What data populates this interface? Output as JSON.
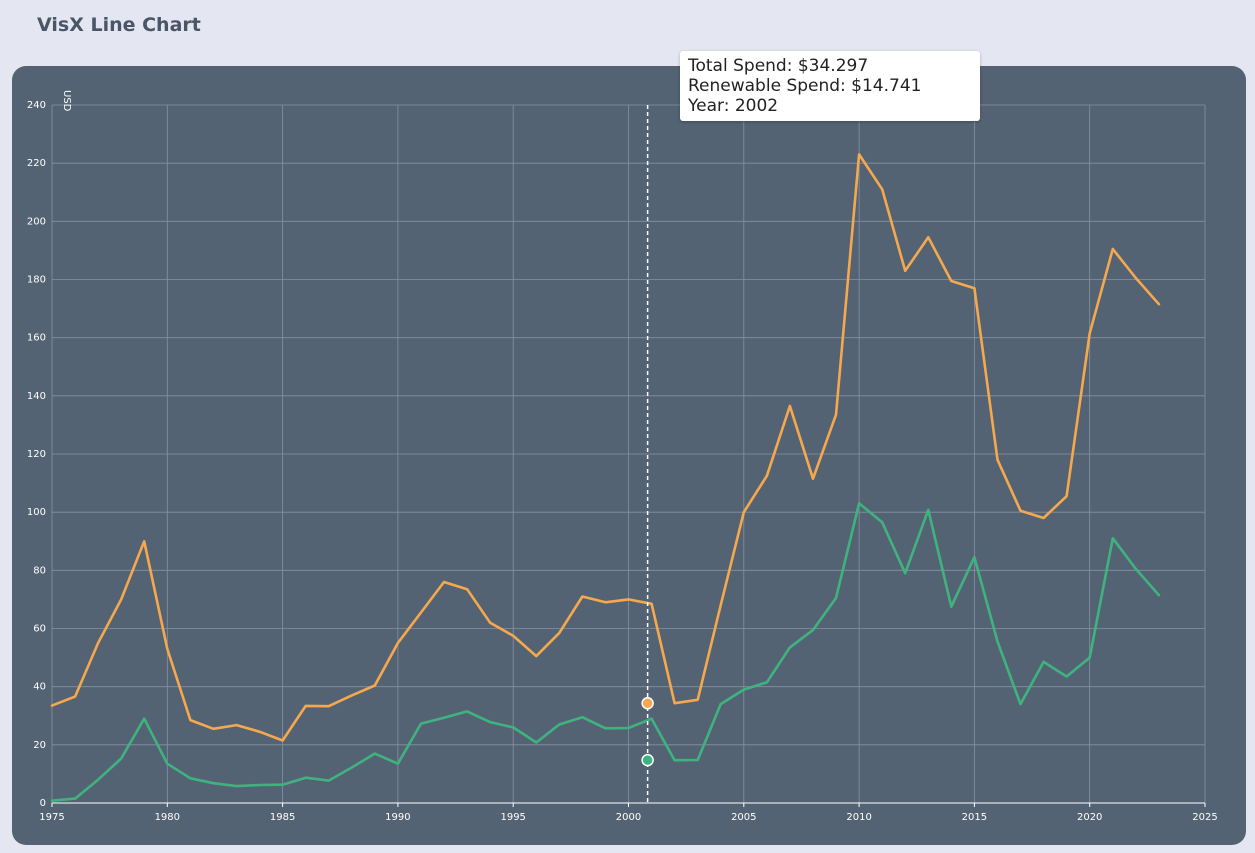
{
  "page": {
    "title": "VisX Line Chart"
  },
  "tooltip": {
    "line1": "Total Spend: $34.297",
    "line2": "Renewable Spend: $14.741",
    "line3": "Year: 2002"
  },
  "colors": {
    "total": "#f5a84e",
    "renewable": "#3fb37f",
    "grid": "#8592a2",
    "text": "#ffffff",
    "crosshair": "#ffffff"
  },
  "chart_data": {
    "type": "line",
    "title": "",
    "xlabel": "",
    "ylabel": "USD",
    "xlim": [
      1975,
      2025
    ],
    "ylim": [
      0,
      240
    ],
    "xticks": [
      1975,
      1980,
      1985,
      1990,
      1995,
      2000,
      2005,
      2010,
      2015,
      2020,
      2025
    ],
    "yticks": [
      0,
      20,
      40,
      60,
      80,
      100,
      120,
      140,
      160,
      180,
      200,
      220,
      240
    ],
    "grid": true,
    "hover": {
      "year": 2002,
      "total": 34.297,
      "renewable": 14.741
    },
    "x": [
      1975,
      1976,
      1977,
      1978,
      1979,
      1980,
      1981,
      1982,
      1983,
      1984,
      1985,
      1986,
      1987,
      1988,
      1989,
      1990,
      1991,
      1992,
      1993,
      1994,
      1995,
      1996,
      1997,
      1998,
      1999,
      2000,
      2001,
      2002,
      2003,
      2004,
      2005,
      2006,
      2007,
      2008,
      2009,
      2010,
      2011,
      2012,
      2013,
      2014,
      2015,
      2016,
      2017,
      2018,
      2019,
      2020,
      2021,
      2022,
      2023
    ],
    "series": [
      {
        "key": "total",
        "values": [
          33.5,
          36.6,
          55,
          70,
          90,
          53,
          28.5,
          25.5,
          26.8,
          24.5,
          21.5,
          33.4,
          33.3,
          37,
          40.4,
          55,
          65.5,
          76,
          73.5,
          62,
          57.5,
          50.5,
          58.5,
          71,
          69,
          70,
          68.5,
          34.3,
          35.5,
          68,
          100,
          112.5,
          136.5,
          111.5,
          133.5,
          223,
          211,
          183,
          194.5,
          179.5,
          177,
          118,
          100.5,
          98,
          105.5,
          161.5,
          190.5,
          180.5,
          171.5
        ]
      },
      {
        "key": "renewable",
        "values": [
          0.8,
          1.5,
          8,
          15.3,
          29,
          13.5,
          8.5,
          6.8,
          5.8,
          6.2,
          6.3,
          8.7,
          7.7,
          12.2,
          17,
          13.5,
          27.3,
          29.3,
          31.5,
          27.8,
          26,
          20.8,
          27,
          29.5,
          25.7,
          25.8,
          29,
          14.7,
          14.8,
          34,
          39,
          41.5,
          53.5,
          59.5,
          70.5,
          103,
          96.5,
          79,
          100.8,
          67.5,
          84.5,
          55.5,
          34,
          48.5,
          43.5,
          50,
          91,
          80.5,
          71.5
        ]
      }
    ]
  }
}
